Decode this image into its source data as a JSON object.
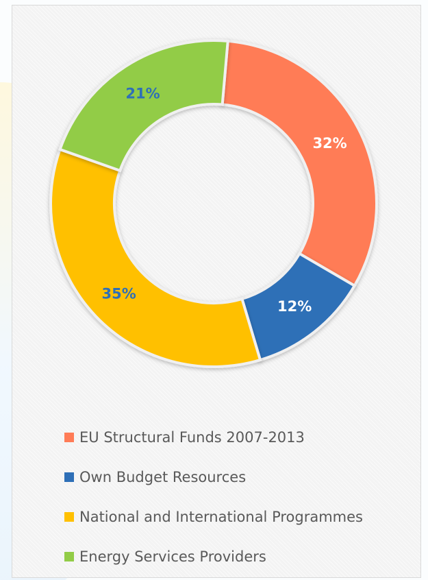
{
  "chart_data": {
    "type": "pie",
    "subtype": "doughnut",
    "title": "",
    "legend_position": "bottom",
    "series": [
      {
        "name": "EU Structural Funds 2007-2013",
        "value": 32,
        "label": "32%",
        "color": "#ff7c57",
        "label_color": "#ffffff"
      },
      {
        "name": "Own Budget Resources",
        "value": 12,
        "label": "12%",
        "color": "#2e6fb7",
        "label_color": "#ffffff"
      },
      {
        "name": "National and International Programmes",
        "value": 35,
        "label": "35%",
        "color": "#ffc000",
        "label_color": "#2e6fb7"
      },
      {
        "name": "Energy Services Providers",
        "value": 21,
        "label": "21%",
        "color": "#92cc47",
        "label_color": "#2e6fb7"
      }
    ]
  },
  "legend": {
    "items": [
      {
        "label": "EU Structural Funds 2007-2013"
      },
      {
        "label": "Own Budget Resources"
      },
      {
        "label": "National and International Programmes"
      },
      {
        "label": "Energy Services Providers"
      }
    ]
  }
}
